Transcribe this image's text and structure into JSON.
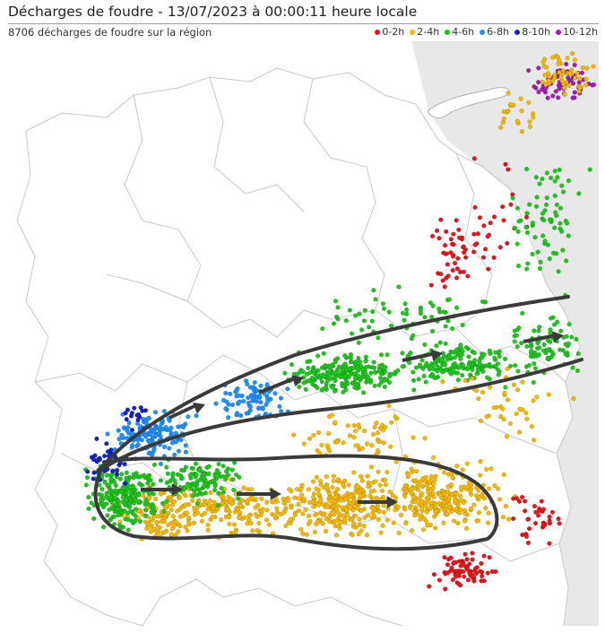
{
  "header": {
    "title": "Décharges de foudre - 13/07/2023 à 00:00:11 heure locale",
    "subtitle": "8706 décharges de foudre sur la région"
  },
  "legend": [
    {
      "label": "0-2h",
      "color": "#e8141c"
    },
    {
      "label": "2-4h",
      "color": "#f5b800"
    },
    {
      "label": "4-6h",
      "color": "#1ec51e"
    },
    {
      "label": "6-8h",
      "color": "#1e90ff"
    },
    {
      "label": "8-10h",
      "color": "#1420c8"
    },
    {
      "label": "10-12h",
      "color": "#a01eb4"
    }
  ],
  "map": {
    "background": "#ffffff",
    "outside_region_color": "#e8e8e8",
    "border_color": "#c8c8c8",
    "annotation_color": "#3a3a3a",
    "annotation": "storm tracks moving east"
  }
}
